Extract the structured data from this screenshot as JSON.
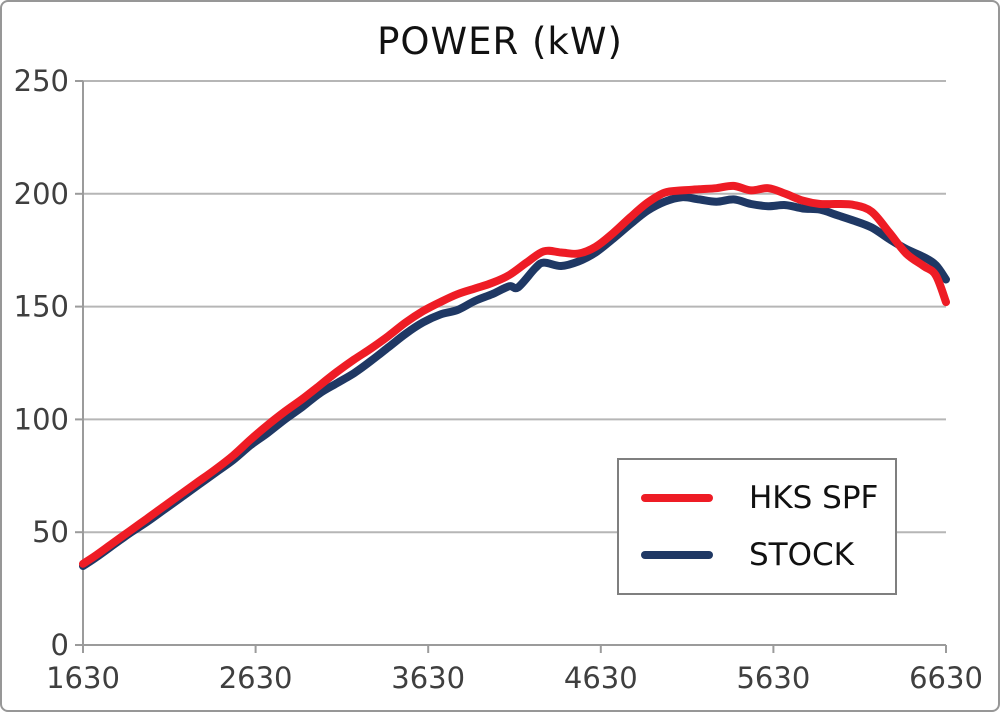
{
  "chart_data": {
    "type": "line",
    "title": "POWER (kW)",
    "xlabel": "",
    "ylabel": "",
    "xlim": [
      1630,
      6630
    ],
    "ylim": [
      0,
      250
    ],
    "x_ticks": [
      1630,
      2630,
      3630,
      4630,
      5630,
      6630
    ],
    "y_ticks": [
      0,
      50,
      100,
      150,
      200,
      250
    ],
    "grid": "horizontal",
    "legend_position": "inside-bottom-right",
    "series": [
      {
        "name": "HKS SPF",
        "color": "#ee1c25",
        "points": [
          [
            1630,
            36
          ],
          [
            1700,
            39.5
          ],
          [
            1800,
            45
          ],
          [
            1900,
            50.5
          ],
          [
            2000,
            56
          ],
          [
            2100,
            61.5
          ],
          [
            2200,
            67
          ],
          [
            2300,
            72.5
          ],
          [
            2400,
            78
          ],
          [
            2500,
            84
          ],
          [
            2600,
            91
          ],
          [
            2700,
            97.5
          ],
          [
            2800,
            103.5
          ],
          [
            2900,
            109
          ],
          [
            3000,
            115
          ],
          [
            3100,
            121
          ],
          [
            3200,
            126.5
          ],
          [
            3300,
            131.5
          ],
          [
            3400,
            137
          ],
          [
            3500,
            143
          ],
          [
            3600,
            148
          ],
          [
            3700,
            152
          ],
          [
            3800,
            155.5
          ],
          [
            3900,
            158
          ],
          [
            4000,
            160.5
          ],
          [
            4100,
            164
          ],
          [
            4200,
            169.5
          ],
          [
            4300,
            174.5
          ],
          [
            4400,
            174
          ],
          [
            4500,
            173.5
          ],
          [
            4600,
            176.5
          ],
          [
            4700,
            182.5
          ],
          [
            4800,
            189.5
          ],
          [
            4900,
            196
          ],
          [
            5000,
            200.5
          ],
          [
            5100,
            201.5
          ],
          [
            5200,
            202
          ],
          [
            5300,
            202.5
          ],
          [
            5400,
            203.5
          ],
          [
            5500,
            201.5
          ],
          [
            5600,
            202.5
          ],
          [
            5700,
            200
          ],
          [
            5800,
            197
          ],
          [
            5900,
            195.5
          ],
          [
            6000,
            195.5
          ],
          [
            6100,
            195
          ],
          [
            6200,
            192
          ],
          [
            6300,
            183
          ],
          [
            6400,
            173.5
          ],
          [
            6500,
            168
          ],
          [
            6570,
            164
          ],
          [
            6630,
            152
          ]
        ]
      },
      {
        "name": "STOCK",
        "color": "#1f3864",
        "points": [
          [
            1630,
            35
          ],
          [
            1700,
            38.5
          ],
          [
            1800,
            44
          ],
          [
            1900,
            49.5
          ],
          [
            2000,
            54.5
          ],
          [
            2100,
            60
          ],
          [
            2200,
            65.5
          ],
          [
            2300,
            71
          ],
          [
            2400,
            76.5
          ],
          [
            2500,
            82
          ],
          [
            2600,
            88.5
          ],
          [
            2700,
            94
          ],
          [
            2800,
            100
          ],
          [
            2900,
            105.5
          ],
          [
            3000,
            111.5
          ],
          [
            3100,
            116
          ],
          [
            3200,
            120.5
          ],
          [
            3300,
            126
          ],
          [
            3400,
            132
          ],
          [
            3500,
            138
          ],
          [
            3600,
            143
          ],
          [
            3700,
            146.5
          ],
          [
            3800,
            148.5
          ],
          [
            3900,
            152.5
          ],
          [
            4000,
            155.5
          ],
          [
            4100,
            159
          ],
          [
            4150,
            158.5
          ],
          [
            4250,
            167
          ],
          [
            4300,
            169.5
          ],
          [
            4400,
            168
          ],
          [
            4500,
            170
          ],
          [
            4600,
            174
          ],
          [
            4700,
            180
          ],
          [
            4800,
            186.5
          ],
          [
            4900,
            192.5
          ],
          [
            5000,
            196.5
          ],
          [
            5100,
            198.5
          ],
          [
            5200,
            197.5
          ],
          [
            5300,
            196.5
          ],
          [
            5400,
            197.5
          ],
          [
            5500,
            195.5
          ],
          [
            5600,
            194.5
          ],
          [
            5700,
            195
          ],
          [
            5800,
            193.5
          ],
          [
            5900,
            193
          ],
          [
            6000,
            190.5
          ],
          [
            6100,
            188
          ],
          [
            6200,
            185
          ],
          [
            6300,
            180
          ],
          [
            6400,
            175.5
          ],
          [
            6500,
            172
          ],
          [
            6570,
            168.5
          ],
          [
            6630,
            162
          ]
        ]
      }
    ],
    "style": {
      "grid_color": "#b6b6b6",
      "axis_color": "#9b9b9b",
      "tick_label_color": "#3f3f3f",
      "line_width": 8
    }
  }
}
